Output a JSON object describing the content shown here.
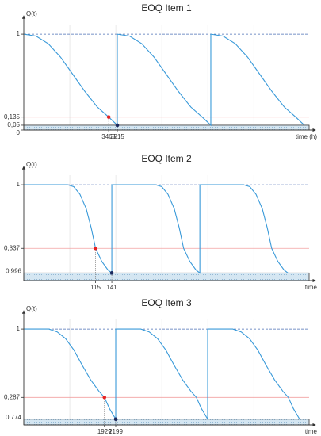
{
  "chart_data": [
    {
      "type": "line",
      "title": "EOQ Item 1",
      "y_label": "Q(t)",
      "x_label": "time (h)",
      "xlim": [
        0,
        11640
      ],
      "ylim": [
        0,
        1.1
      ],
      "xticks": [
        3465,
        3815
      ],
      "yticks": [
        1,
        {
          "value": 0.135,
          "label": "0,135"
        },
        {
          "value": 0.05,
          "label": "0,05"
        },
        0
      ],
      "series": [
        {
          "name": "Q(t)",
          "color": "#3a9ad9",
          "x": [
            0,
            500,
            1000,
            1500,
            2000,
            2500,
            3000,
            3465,
            3815,
            3815,
            4315,
            4815,
            5315,
            5815,
            6315,
            6815,
            7280,
            7630,
            7630,
            8130,
            8630,
            9130,
            9630,
            10130,
            10630,
            11095,
            11445
          ],
          "values": [
            1,
            0.98,
            0.9,
            0.76,
            0.58,
            0.4,
            0.24,
            0.135,
            0.05,
            1,
            0.98,
            0.9,
            0.76,
            0.58,
            0.4,
            0.24,
            0.135,
            0.05,
            1,
            0.98,
            0.9,
            0.76,
            0.58,
            0.4,
            0.24,
            0.135,
            0.05
          ]
        }
      ],
      "guide_lines": [
        {
          "value": 1,
          "color": "#4a6fb5",
          "dash": true
        },
        {
          "value": 0.135,
          "color": "#f2a0a0",
          "dash": false
        }
      ],
      "band": {
        "range": [
          0,
          0.05
        ],
        "color": "#d4e6f2"
      },
      "markers": [
        {
          "x": 3465,
          "y": 0.135,
          "color": "#e52222"
        },
        {
          "x": 3815,
          "y": 0.05,
          "color": "#1b2a5e"
        }
      ],
      "annotations": []
    },
    {
      "type": "line",
      "title": "EOQ Item 2",
      "y_label": "Q(t)",
      "x_label": "time",
      "xlim": [
        0,
        457
      ],
      "ylim": [
        0,
        1.1
      ],
      "xticks": [
        115,
        141
      ],
      "yticks": [
        1,
        {
          "value": 0.337,
          "label": "0,337"
        }
      ],
      "series": [
        {
          "name": "Q(t)",
          "color": "#3a9ad9",
          "x": [
            0,
            70,
            80,
            90,
            100,
            108,
            115,
            125,
            135,
            141,
            141,
            211,
            221,
            231,
            241,
            249,
            256,
            266,
            276,
            282,
            282,
            352,
            362,
            372,
            382,
            390,
            397,
            407,
            417,
            423
          ],
          "values": [
            1,
            1,
            0.98,
            0.9,
            0.75,
            0.55,
            0.337,
            0.2,
            0.11,
            0.08,
            1,
            1,
            0.98,
            0.9,
            0.75,
            0.55,
            0.337,
            0.2,
            0.11,
            0.08,
            1,
            1,
            0.98,
            0.9,
            0.75,
            0.55,
            0.337,
            0.2,
            0.11,
            0.08
          ]
        }
      ],
      "guide_lines": [
        {
          "value": 1,
          "color": "#4a6fb5",
          "dash": true
        },
        {
          "value": 0.337,
          "color": "#f2a0a0",
          "dash": false
        }
      ],
      "band": {
        "range": [
          0,
          0.08
        ],
        "color": "#d4e6f2"
      },
      "markers": [
        {
          "x": 115,
          "y": 0.337,
          "color": "#e52222"
        },
        {
          "x": 141,
          "y": 0.08,
          "color": "#1b2a5e"
        }
      ],
      "annotations": [
        "0,996"
      ]
    },
    {
      "type": "line",
      "title": "EOQ Item 3",
      "y_label": "Q(t)",
      "x_label": "time",
      "xlim": [
        0,
        6824
      ],
      "ylim": [
        0,
        1.1
      ],
      "xticks": [
        1929,
        2199
      ],
      "yticks": [
        1,
        {
          "value": 0.287,
          "label": "0,287"
        }
      ],
      "series": [
        {
          "name": "Q(t)",
          "color": "#3a9ad9",
          "x": [
            0,
            600,
            800,
            1000,
            1200,
            1400,
            1600,
            1800,
            1929,
            2050,
            2199,
            2199,
            2799,
            2999,
            3199,
            3399,
            3599,
            3799,
            3999,
            4128,
            4249,
            4398,
            4398,
            4998,
            5198,
            5398,
            5598,
            5798,
            5998,
            6198,
            6327,
            6448,
            6597
          ],
          "values": [
            1,
            1,
            0.97,
            0.9,
            0.78,
            0.62,
            0.47,
            0.35,
            0.287,
            0.17,
            0.06,
            1,
            1,
            0.97,
            0.9,
            0.78,
            0.62,
            0.47,
            0.35,
            0.287,
            0.17,
            0.06,
            1,
            1,
            0.97,
            0.9,
            0.78,
            0.62,
            0.47,
            0.35,
            0.287,
            0.17,
            0.06
          ]
        }
      ],
      "guide_lines": [
        {
          "value": 1,
          "color": "#4a6fb5",
          "dash": true
        },
        {
          "value": 0.287,
          "color": "#f2a0a0",
          "dash": false
        }
      ],
      "band": {
        "range": [
          0,
          0.06
        ],
        "color": "#d4e6f2"
      },
      "markers": [
        {
          "x": 1929,
          "y": 0.287,
          "color": "#e52222"
        },
        {
          "x": 2199,
          "y": 0.06,
          "color": "#1b2a5e"
        }
      ],
      "annotations": [
        "0,774"
      ]
    }
  ]
}
